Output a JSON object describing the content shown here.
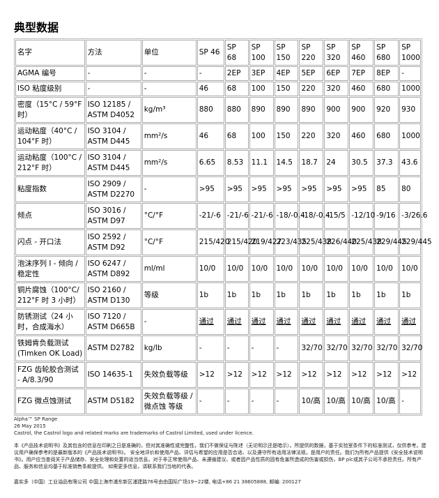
{
  "title": "典型数据",
  "table": {
    "headers": [
      "名字",
      "方法",
      "单位",
      "SP 46",
      "SP 68",
      "SP 100",
      "SP 150",
      "SP 220",
      "SP 320",
      "SP 460",
      "SP 680",
      "SP 1000"
    ],
    "rows": [
      {
        "name": "AGMA 编号",
        "method": "-",
        "unit": "-",
        "values": [
          "-",
          "2EP",
          "3EP",
          "4EP",
          "5EP",
          "6EP",
          "7EP",
          "8EP",
          "-"
        ]
      },
      {
        "name": "ISO 粘度级别",
        "method": "-",
        "unit": "-",
        "values": [
          "46",
          "68",
          "100",
          "150",
          "220",
          "320",
          "460",
          "680",
          "1000"
        ]
      },
      {
        "name": "密度（15°C / 59°F 时）",
        "method": "ISO 12185 / ASTM D4052",
        "unit": "kg/m³",
        "values": [
          "880",
          "880",
          "890",
          "890",
          "890",
          "900",
          "900",
          "920",
          "930"
        ]
      },
      {
        "name": "运动粘度（40°C / 104°F 时）",
        "method": "ISO 3104 / ASTM D445",
        "unit": "mm²/s",
        "values": [
          "46",
          "68",
          "100",
          "150",
          "220",
          "320",
          "460",
          "680",
          "1000"
        ]
      },
      {
        "name": "运动粘度（100°C / 212°F 时）",
        "method": "ISO 3104 / ASTM D445",
        "unit": "mm²/s",
        "values": [
          "6.65",
          "8.53",
          "11.1",
          "14.5",
          "18.7",
          "24",
          "30.5",
          "37.3",
          "43.6"
        ]
      },
      {
        "name": "粘度指数",
        "method": "ISO 2909 / ASTM D2270",
        "unit": "-",
        "values": [
          ">95",
          ">95",
          ">95",
          ">95",
          ">95",
          ">95",
          ">95",
          "85",
          "80"
        ]
      },
      {
        "name": "倾点",
        "method": "ISO 3016 / ASTM D97",
        "unit": "°C/°F",
        "values": [
          "-21/-6",
          "-21/-6",
          "-21/-6",
          "-18/-0.4",
          "-18/-0.4",
          "-15/5",
          "-12/10",
          "-9/16",
          "-3/26.6"
        ]
      },
      {
        "name": "闪点 - 开口法",
        "method": "ISO 2592 / ASTM D92",
        "unit": "°C/°F",
        "values": [
          "215/420",
          "215/420",
          "219/427",
          "223/435",
          "225/438",
          "226/440",
          "225/438",
          "229/445",
          "229/445"
        ]
      },
      {
        "name": "泡沫序列 I - 倾向 / 稳定性",
        "method": "ISO 6247 / ASTM D892",
        "unit": "ml/ml",
        "values": [
          "10/0",
          "10/0",
          "10/0",
          "10/0",
          "10/0",
          "10/0",
          "10/0",
          "10/0",
          "10/0"
        ]
      },
      {
        "name": "铜片腐蚀（100°C/ 212°F 时 3 小时）",
        "method": "ISO 2160 / ASTM D130",
        "unit": "等级",
        "values": [
          "1b",
          "1b",
          "1b",
          "1b",
          "1b",
          "1b",
          "1b",
          "1b",
          "1b"
        ]
      },
      {
        "name": "防锈测试（24 小时，合成海水）",
        "method": "ISO 7120 / ASTM D665B",
        "unit": "-",
        "values": [
          "通过",
          "通过",
          "通过",
          "通过",
          "通过",
          "通过",
          "通过",
          "通过",
          "通过"
        ],
        "underline": true
      },
      {
        "name": "铁姆肯负载测试 (Timken OK Load)",
        "method": "ASTM D2782",
        "unit": "kg/lb",
        "values": [
          "-",
          "-",
          "-",
          "-",
          "32/70",
          "32/70",
          "32/70",
          "32/70",
          "32/70"
        ]
      },
      {
        "name": "FZG 齿轮胶合测试 - A/8.3/90",
        "method": "ISO 14635-1",
        "unit": "失效负载等级",
        "values": [
          ">12",
          ">12",
          ">12",
          ">12",
          ">12",
          ">12",
          ">12",
          ">12",
          ">12"
        ]
      },
      {
        "name": "FZG 微点蚀测试",
        "method": "ASTM D5182",
        "unit": "失效负载等级 / 微点蚀 等级",
        "values": [
          "-",
          "-",
          "-",
          "-",
          "10/高",
          "10/高",
          "10/高",
          "10/高",
          "-"
        ]
      }
    ]
  },
  "footer": {
    "product": "Alpha™ SP Range",
    "date": "26 May 2015",
    "trademark": "Castrol, the Castrol logo and related marks are trademarks of Castrol Limited, used under licence.",
    "disclaimer": "本《产品技术说明书》及其包含的信息在印刷之日是准确的，但对其准确性或完整性，我们不做保证与陈述（无论明示还是暗示）。所提供的数据，基于实验室条件下的标准测试，仅供参考。建议用户确保参考的是最新版本的《产品技术说明书》。 安全地评价和使用产品、评估与希望的应用是否合适、以及遵守所有适用法律法规，是用户的责任。我们为所有产品提供《安全技术说明书》。用户应当查阅关于产品储存、安全处理和处置的适当信息。对于非正常使用产品、未遵循建议、或者因产品性质的固有危害所造成的伤害或损伤，BP plc或其子公司不承担责任。所有产品、服务和信息均基于标准销售条款提供。 如需更多信息，请联系我们当地的代表。",
    "address": "嘉实多（中国）工业油品有限公司 中国上海市浦东新区浦建路76号由由国际广场19~22楼, 电话+86 21 38605888, 邮编: 200127"
  }
}
